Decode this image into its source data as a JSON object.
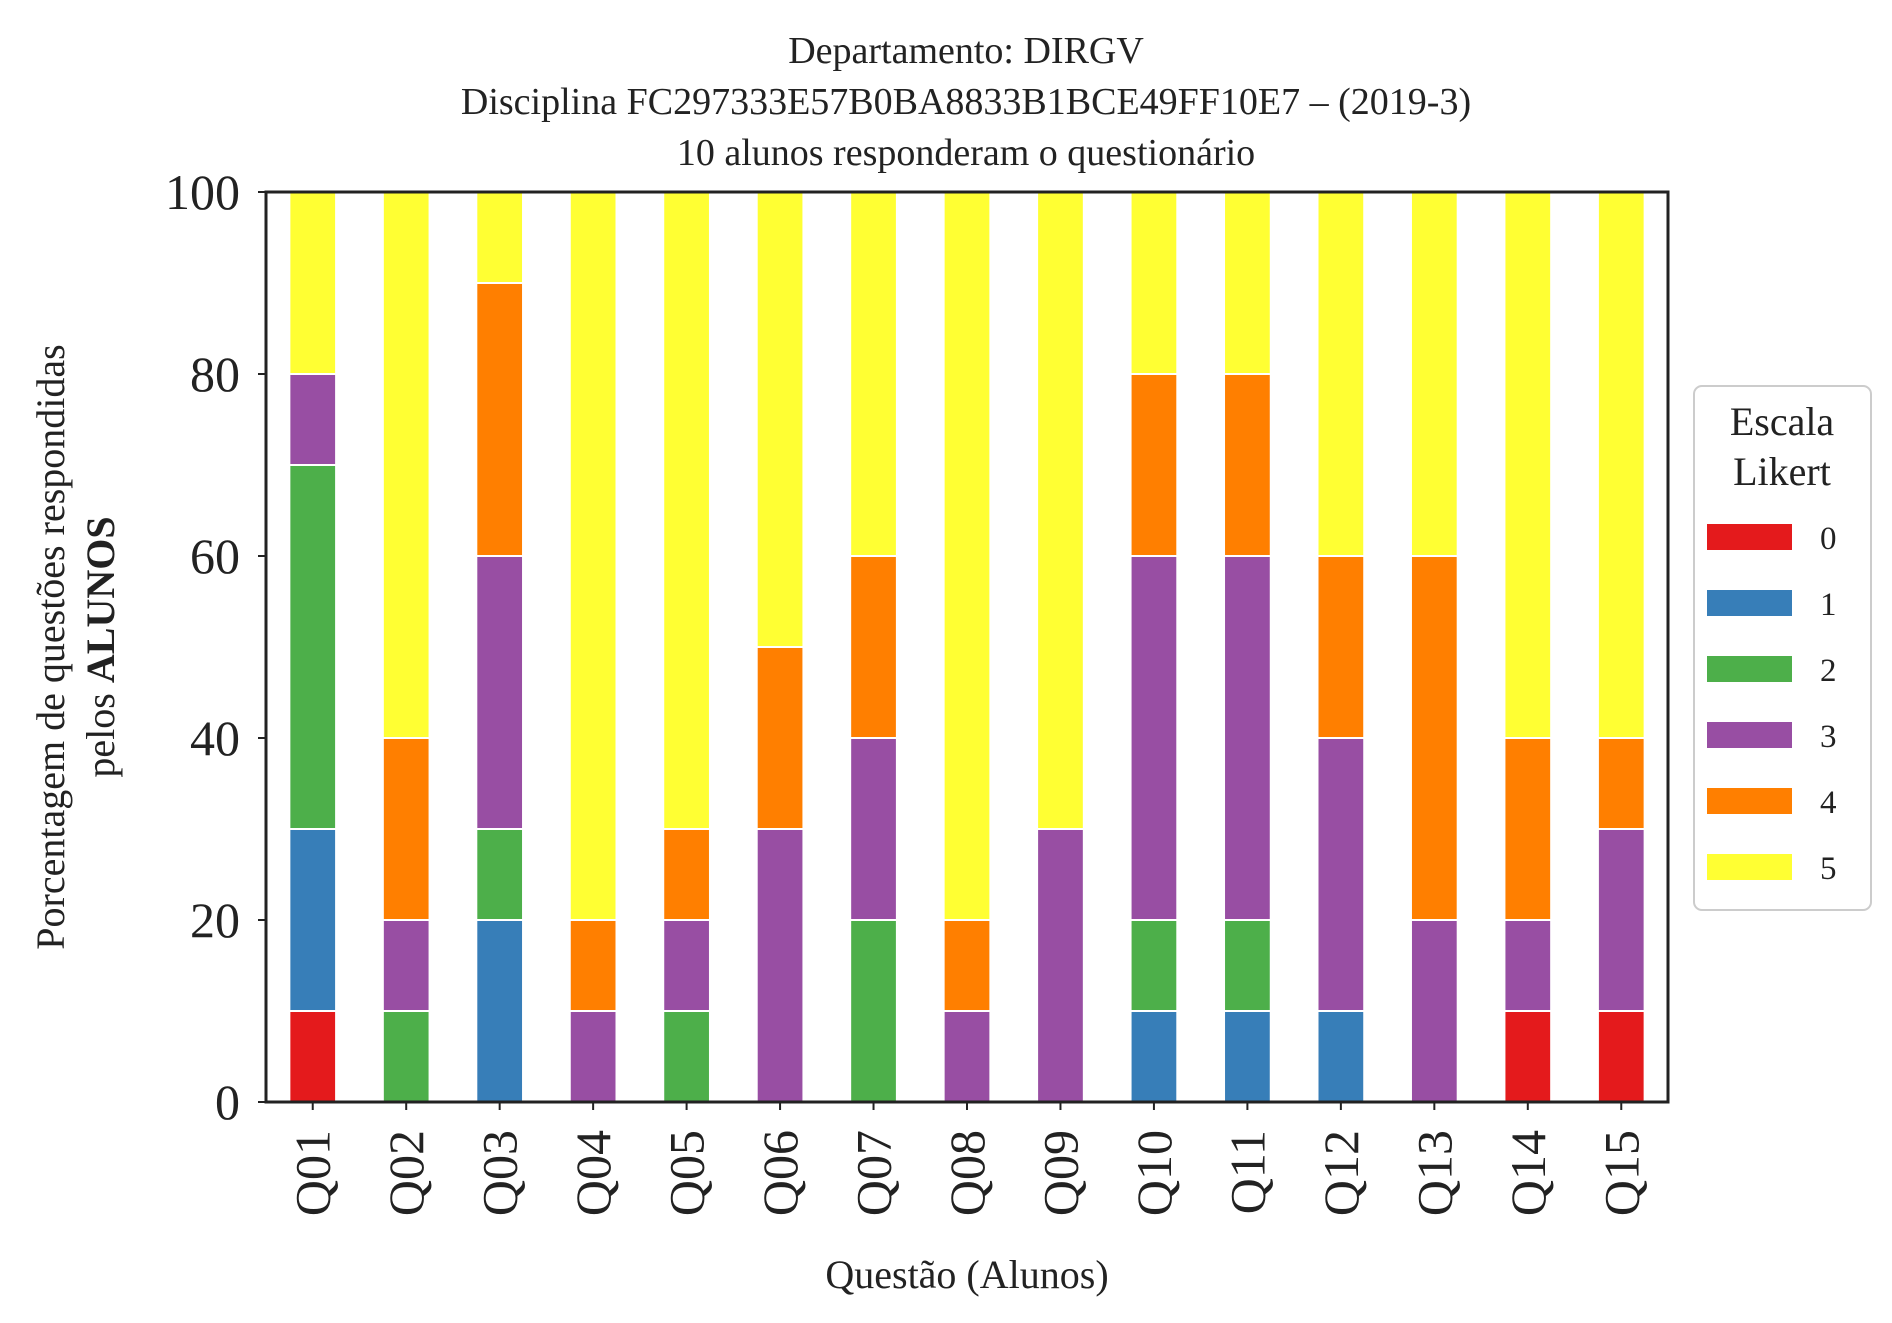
{
  "chart_data": {
    "type": "bar",
    "stacked": true,
    "title_lines": [
      "Departamento: DIRGV",
      "Disciplina FC297333E57B0BA8833B1BCE49FF10E7 – (2019-3)",
      "10 alunos responderam o questionário"
    ],
    "xlabel": "Questão (Alunos)",
    "ylabel_line1": "Porcentagem de questões respondidas",
    "ylabel_line2_prefix": "pelos ",
    "ylabel_line2_bold": "ALUNOS",
    "ylim": [
      0,
      100
    ],
    "yticks": [
      "0",
      "20",
      "40",
      "60",
      "80",
      "100"
    ],
    "grid": false,
    "legend_position": "right",
    "legend_title_lines": [
      "Escala",
      "Likert"
    ],
    "categories": [
      "Q01",
      "Q02",
      "Q03",
      "Q04",
      "Q05",
      "Q06",
      "Q07",
      "Q08",
      "Q09",
      "Q10",
      "Q11",
      "Q12",
      "Q13",
      "Q14",
      "Q15"
    ],
    "series": [
      {
        "name": "0",
        "color": "#e41a1c",
        "values": [
          10,
          0,
          0,
          0,
          0,
          0,
          0,
          0,
          0,
          0,
          0,
          0,
          0,
          10,
          10
        ]
      },
      {
        "name": "1",
        "color": "#377eb8",
        "values": [
          20,
          0,
          20,
          0,
          0,
          0,
          0,
          0,
          0,
          10,
          10,
          10,
          0,
          0,
          0
        ]
      },
      {
        "name": "2",
        "color": "#4daf4a",
        "values": [
          40,
          10,
          10,
          0,
          10,
          0,
          20,
          0,
          0,
          10,
          10,
          0,
          0,
          0,
          0
        ]
      },
      {
        "name": "3",
        "color": "#984ea3",
        "values": [
          10,
          10,
          30,
          10,
          10,
          30,
          20,
          10,
          30,
          40,
          40,
          30,
          20,
          10,
          20
        ]
      },
      {
        "name": "4",
        "color": "#ff7f00",
        "values": [
          0,
          20,
          30,
          10,
          10,
          20,
          20,
          10,
          0,
          20,
          20,
          20,
          40,
          20,
          10
        ]
      },
      {
        "name": "5",
        "color": "#ffff33",
        "values": [
          20,
          60,
          10,
          80,
          70,
          50,
          40,
          80,
          70,
          20,
          20,
          40,
          40,
          60,
          60
        ]
      }
    ]
  }
}
